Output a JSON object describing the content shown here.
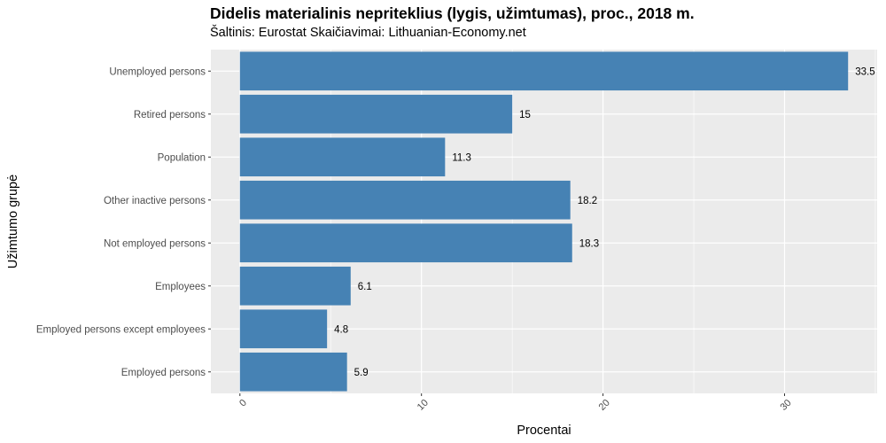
{
  "title": "Didelis materialinis nepriteklius (lygis, užimtumas), proc., 2018 m.",
  "subtitle": "Šaltinis: Eurostat Skaičiavimai: Lithuanian-Economy.net",
  "chart_data": {
    "type": "bar",
    "orientation": "horizontal",
    "categories": [
      "Unemployed persons",
      "Retired persons",
      "Population",
      "Other inactive persons",
      "Not employed persons",
      "Employees",
      "Employed persons except employees",
      "Employed persons"
    ],
    "values": [
      33.5,
      15,
      11.3,
      18.2,
      18.3,
      6.1,
      4.8,
      5.9
    ],
    "value_labels": [
      "33.5",
      "15",
      "11.3",
      "18.2",
      "18.3",
      "6.1",
      "4.8",
      "5.9"
    ],
    "xlabel": "Procentai",
    "ylabel": "Užimtumo grupė",
    "xlim": [
      -1.6,
      35.1
    ],
    "x_ticks": [
      0,
      10,
      20,
      30
    ],
    "x_tick_labels": [
      "0",
      "10",
      "20",
      "30"
    ],
    "bar_color": "#4682b4",
    "panel_background": "#ebebeb",
    "grid": true,
    "x_tick_label_rotation": 45
  }
}
